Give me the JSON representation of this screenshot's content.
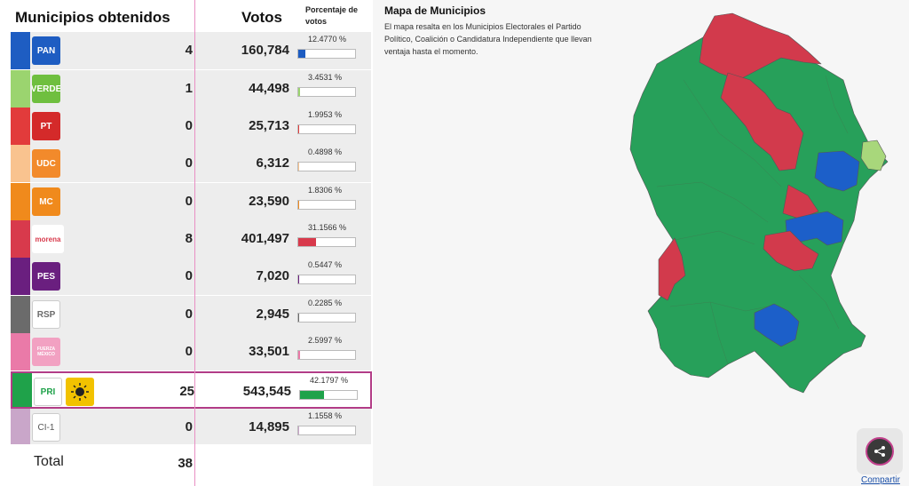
{
  "table": {
    "header_municipios": "Municipios obtenidos",
    "header_votos": "Votos",
    "header_porcentaje": "Porcentaje de votos",
    "rows": [
      {
        "party": "PAN",
        "logo_text": "PAN",
        "municipios": "4",
        "votos": "160,784",
        "porcentaje": "12.4770 %",
        "pct_value": 12.477,
        "color": "#1e5dc2",
        "logo_bg": "#1e5dc2"
      },
      {
        "party": "VERDE",
        "logo_text": "VERDE",
        "municipios": "1",
        "votos": "44,498",
        "porcentaje": "3.4531 %",
        "pct_value": 3.4531,
        "color": "#9bd46f",
        "logo_bg": "#6fbf3f"
      },
      {
        "party": "PT",
        "logo_text": "PT",
        "municipios": "0",
        "votos": "25,713",
        "porcentaje": "1.9953 %",
        "pct_value": 1.9953,
        "color": "#e23b3b",
        "logo_bg": "#d42a2a"
      },
      {
        "party": "UDC",
        "logo_text": "UDC",
        "municipios": "0",
        "votos": "6,312",
        "porcentaje": "0.4898 %",
        "pct_value": 0.4898,
        "color": "#f9c38f",
        "logo_bg": "#f28a2b"
      },
      {
        "party": "MC",
        "logo_text": "MC",
        "municipios": "0",
        "votos": "23,590",
        "porcentaje": "1.8306 %",
        "pct_value": 1.8306,
        "color": "#f08a1c",
        "logo_bg": "#f08a1c"
      },
      {
        "party": "MORENA",
        "logo_text": "morena",
        "municipios": "8",
        "votos": "401,497",
        "porcentaje": "31.1566 %",
        "pct_value": 31.1566,
        "color": "#d83a4c",
        "logo_bg": "#ffffff"
      },
      {
        "party": "PES",
        "logo_text": "PES",
        "municipios": "0",
        "votos": "7,020",
        "porcentaje": "0.5447 %",
        "pct_value": 0.5447,
        "color": "#6a1f7f",
        "logo_bg": "#6a1f7f"
      },
      {
        "party": "RSP",
        "logo_text": "RSP",
        "municipios": "0",
        "votos": "2,945",
        "porcentaje": "0.2285 %",
        "pct_value": 0.2285,
        "color": "#6b6b6b",
        "logo_bg": "#ffffff"
      },
      {
        "party": "FXM",
        "logo_text": "FUERZA MÉXICO",
        "municipios": "0",
        "votos": "33,501",
        "porcentaje": "2.5997 %",
        "pct_value": 2.5997,
        "color": "#ea7aa8",
        "logo_bg": "#f2a1c2"
      },
      {
        "party": "PRI-PRD",
        "logo_text": "PRI",
        "municipios": "25",
        "votos": "543,545",
        "porcentaje": "42.1797 %",
        "pct_value": 42.1797,
        "color": "#1fa24a",
        "logo_bg": "#ffffff",
        "highlight": true
      },
      {
        "party": "CI-1",
        "logo_text": "CI-1",
        "municipios": "0",
        "votos": "14,895",
        "porcentaje": "1.1558 %",
        "pct_value": 1.1558,
        "color": "#c9a6c9",
        "logo_bg": "#ffffff"
      }
    ],
    "total_label": "Total",
    "total_value": "38"
  },
  "map": {
    "title": "Mapa de Municipios",
    "description": "El mapa resalta en los Municipios Electorales el Partido Político, Coalición o Candidatura Independiente que llevan ventaja hasta el momento.",
    "colors": {
      "green": "#27a05a",
      "red": "#d23a4c",
      "blue": "#1c5fc9",
      "light_green": "#a8d77b"
    }
  },
  "share": {
    "label": "Compartir",
    "icon": "share-icon"
  }
}
